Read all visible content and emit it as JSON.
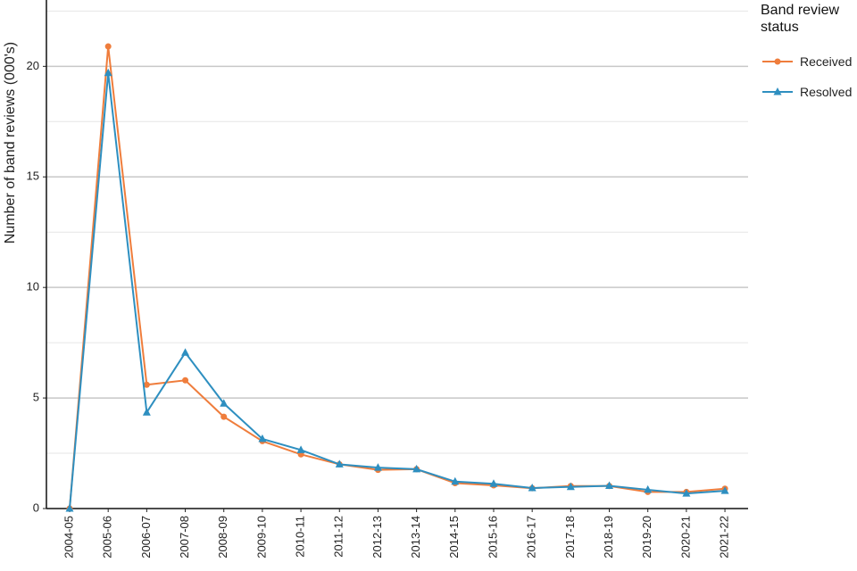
{
  "chart_data": {
    "type": "line",
    "y_label": "Number of band reviews (000's)",
    "categories": [
      "2004-05",
      "2005-06",
      "2006-07",
      "2007-08",
      "2008-09",
      "2009-10",
      "2010-11",
      "2011-12",
      "2012-13",
      "2013-14",
      "2014-15",
      "2015-16",
      "2016-17",
      "2017-18",
      "2018-19",
      "2019-20",
      "2020-21",
      "2021-22"
    ],
    "series": [
      {
        "name": "Received",
        "color": "#ef7d3c",
        "marker": "circle",
        "values": [
          0,
          20.9,
          5.6,
          5.8,
          4.15,
          3.05,
          2.45,
          2.0,
          1.75,
          1.78,
          1.15,
          1.05,
          0.92,
          1.02,
          1.02,
          0.75,
          0.75,
          0.9
        ]
      },
      {
        "name": "Resolved",
        "color": "#2e8fc0",
        "marker": "triangle",
        "values": [
          0,
          19.7,
          4.35,
          7.05,
          4.75,
          3.15,
          2.65,
          2.0,
          1.85,
          1.78,
          1.22,
          1.12,
          0.93,
          0.98,
          1.03,
          0.85,
          0.68,
          0.8
        ]
      }
    ],
    "legend_title": "Band review status",
    "legend_position": "right",
    "ylim": [
      0,
      23
    ],
    "yticks": [
      0,
      5,
      10,
      15,
      20
    ],
    "minor_yticks": [
      2.5,
      7.5,
      12.5,
      17.5,
      22.5
    ],
    "grid": true
  }
}
